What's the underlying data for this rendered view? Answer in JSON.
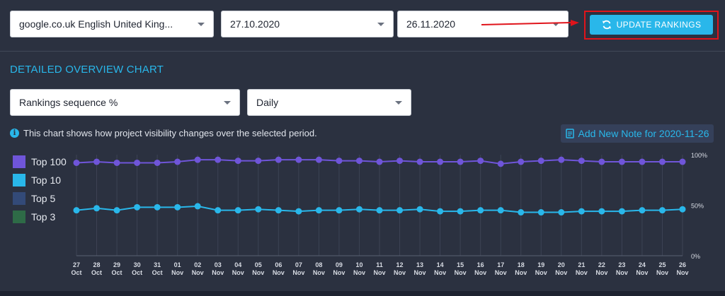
{
  "filters": {
    "domain": "google.co.uk English United King...",
    "date_from": "27.10.2020",
    "date_to": "26.11.2020"
  },
  "update_button": {
    "label": "UPDATE RANKINGS",
    "icon": "refresh-icon"
  },
  "section": {
    "title": "DETAILED OVERVIEW CHART"
  },
  "controls": {
    "metric": "Rankings sequence %",
    "period": "Daily"
  },
  "info_text": "This chart shows how project visibility changes over the selected period.",
  "note_button": {
    "label": "Add New Note for 2020-11-26",
    "icon": "note-icon"
  },
  "legend": [
    {
      "label": "Top 100",
      "color": "#6f55d9"
    },
    {
      "label": "Top 10",
      "color": "#29b7ea"
    },
    {
      "label": "Top 5",
      "color": "#334a78"
    },
    {
      "label": "Top 3",
      "color": "#2e6b47"
    }
  ],
  "colors": {
    "accent": "#29b7ea",
    "background": "#2b3140",
    "highlight": "#e0141b"
  },
  "chart_data": {
    "type": "line",
    "ylim": [
      0,
      100
    ],
    "y_ticks": [
      "100%",
      "50%",
      "0%"
    ],
    "categories": [
      {
        "day": "27",
        "month": "Oct"
      },
      {
        "day": "28",
        "month": "Oct"
      },
      {
        "day": "29",
        "month": "Oct"
      },
      {
        "day": "30",
        "month": "Oct"
      },
      {
        "day": "31",
        "month": "Oct"
      },
      {
        "day": "01",
        "month": "Nov"
      },
      {
        "day": "02",
        "month": "Nov"
      },
      {
        "day": "03",
        "month": "Nov"
      },
      {
        "day": "04",
        "month": "Nov"
      },
      {
        "day": "05",
        "month": "Nov"
      },
      {
        "day": "06",
        "month": "Nov"
      },
      {
        "day": "07",
        "month": "Nov"
      },
      {
        "day": "08",
        "month": "Nov"
      },
      {
        "day": "09",
        "month": "Nov"
      },
      {
        "day": "10",
        "month": "Nov"
      },
      {
        "day": "11",
        "month": "Nov"
      },
      {
        "day": "12",
        "month": "Nov"
      },
      {
        "day": "13",
        "month": "Nov"
      },
      {
        "day": "14",
        "month": "Nov"
      },
      {
        "day": "15",
        "month": "Nov"
      },
      {
        "day": "16",
        "month": "Nov"
      },
      {
        "day": "17",
        "month": "Nov"
      },
      {
        "day": "18",
        "month": "Nov"
      },
      {
        "day": "19",
        "month": "Nov"
      },
      {
        "day": "20",
        "month": "Nov"
      },
      {
        "day": "21",
        "month": "Nov"
      },
      {
        "day": "22",
        "month": "Nov"
      },
      {
        "day": "23",
        "month": "Nov"
      },
      {
        "day": "24",
        "month": "Nov"
      },
      {
        "day": "25",
        "month": "Nov"
      },
      {
        "day": "26",
        "month": "Nov"
      }
    ],
    "series": [
      {
        "name": "Top 100",
        "color": "#6f55d9",
        "values": [
          92,
          93,
          92,
          92,
          92,
          93,
          95,
          95,
          94,
          94,
          95,
          95,
          95,
          94,
          94,
          93,
          94,
          93,
          93,
          93,
          94,
          91,
          93,
          94,
          95,
          94,
          93,
          93,
          93,
          93,
          93
        ]
      },
      {
        "name": "Top 10",
        "color": "#29b7ea",
        "values": [
          45,
          47,
          45,
          48,
          48,
          48,
          49,
          45,
          45,
          46,
          45,
          44,
          45,
          45,
          46,
          45,
          45,
          46,
          44,
          44,
          45,
          45,
          43,
          43,
          43,
          44,
          44,
          44,
          45,
          45,
          46
        ]
      }
    ]
  }
}
